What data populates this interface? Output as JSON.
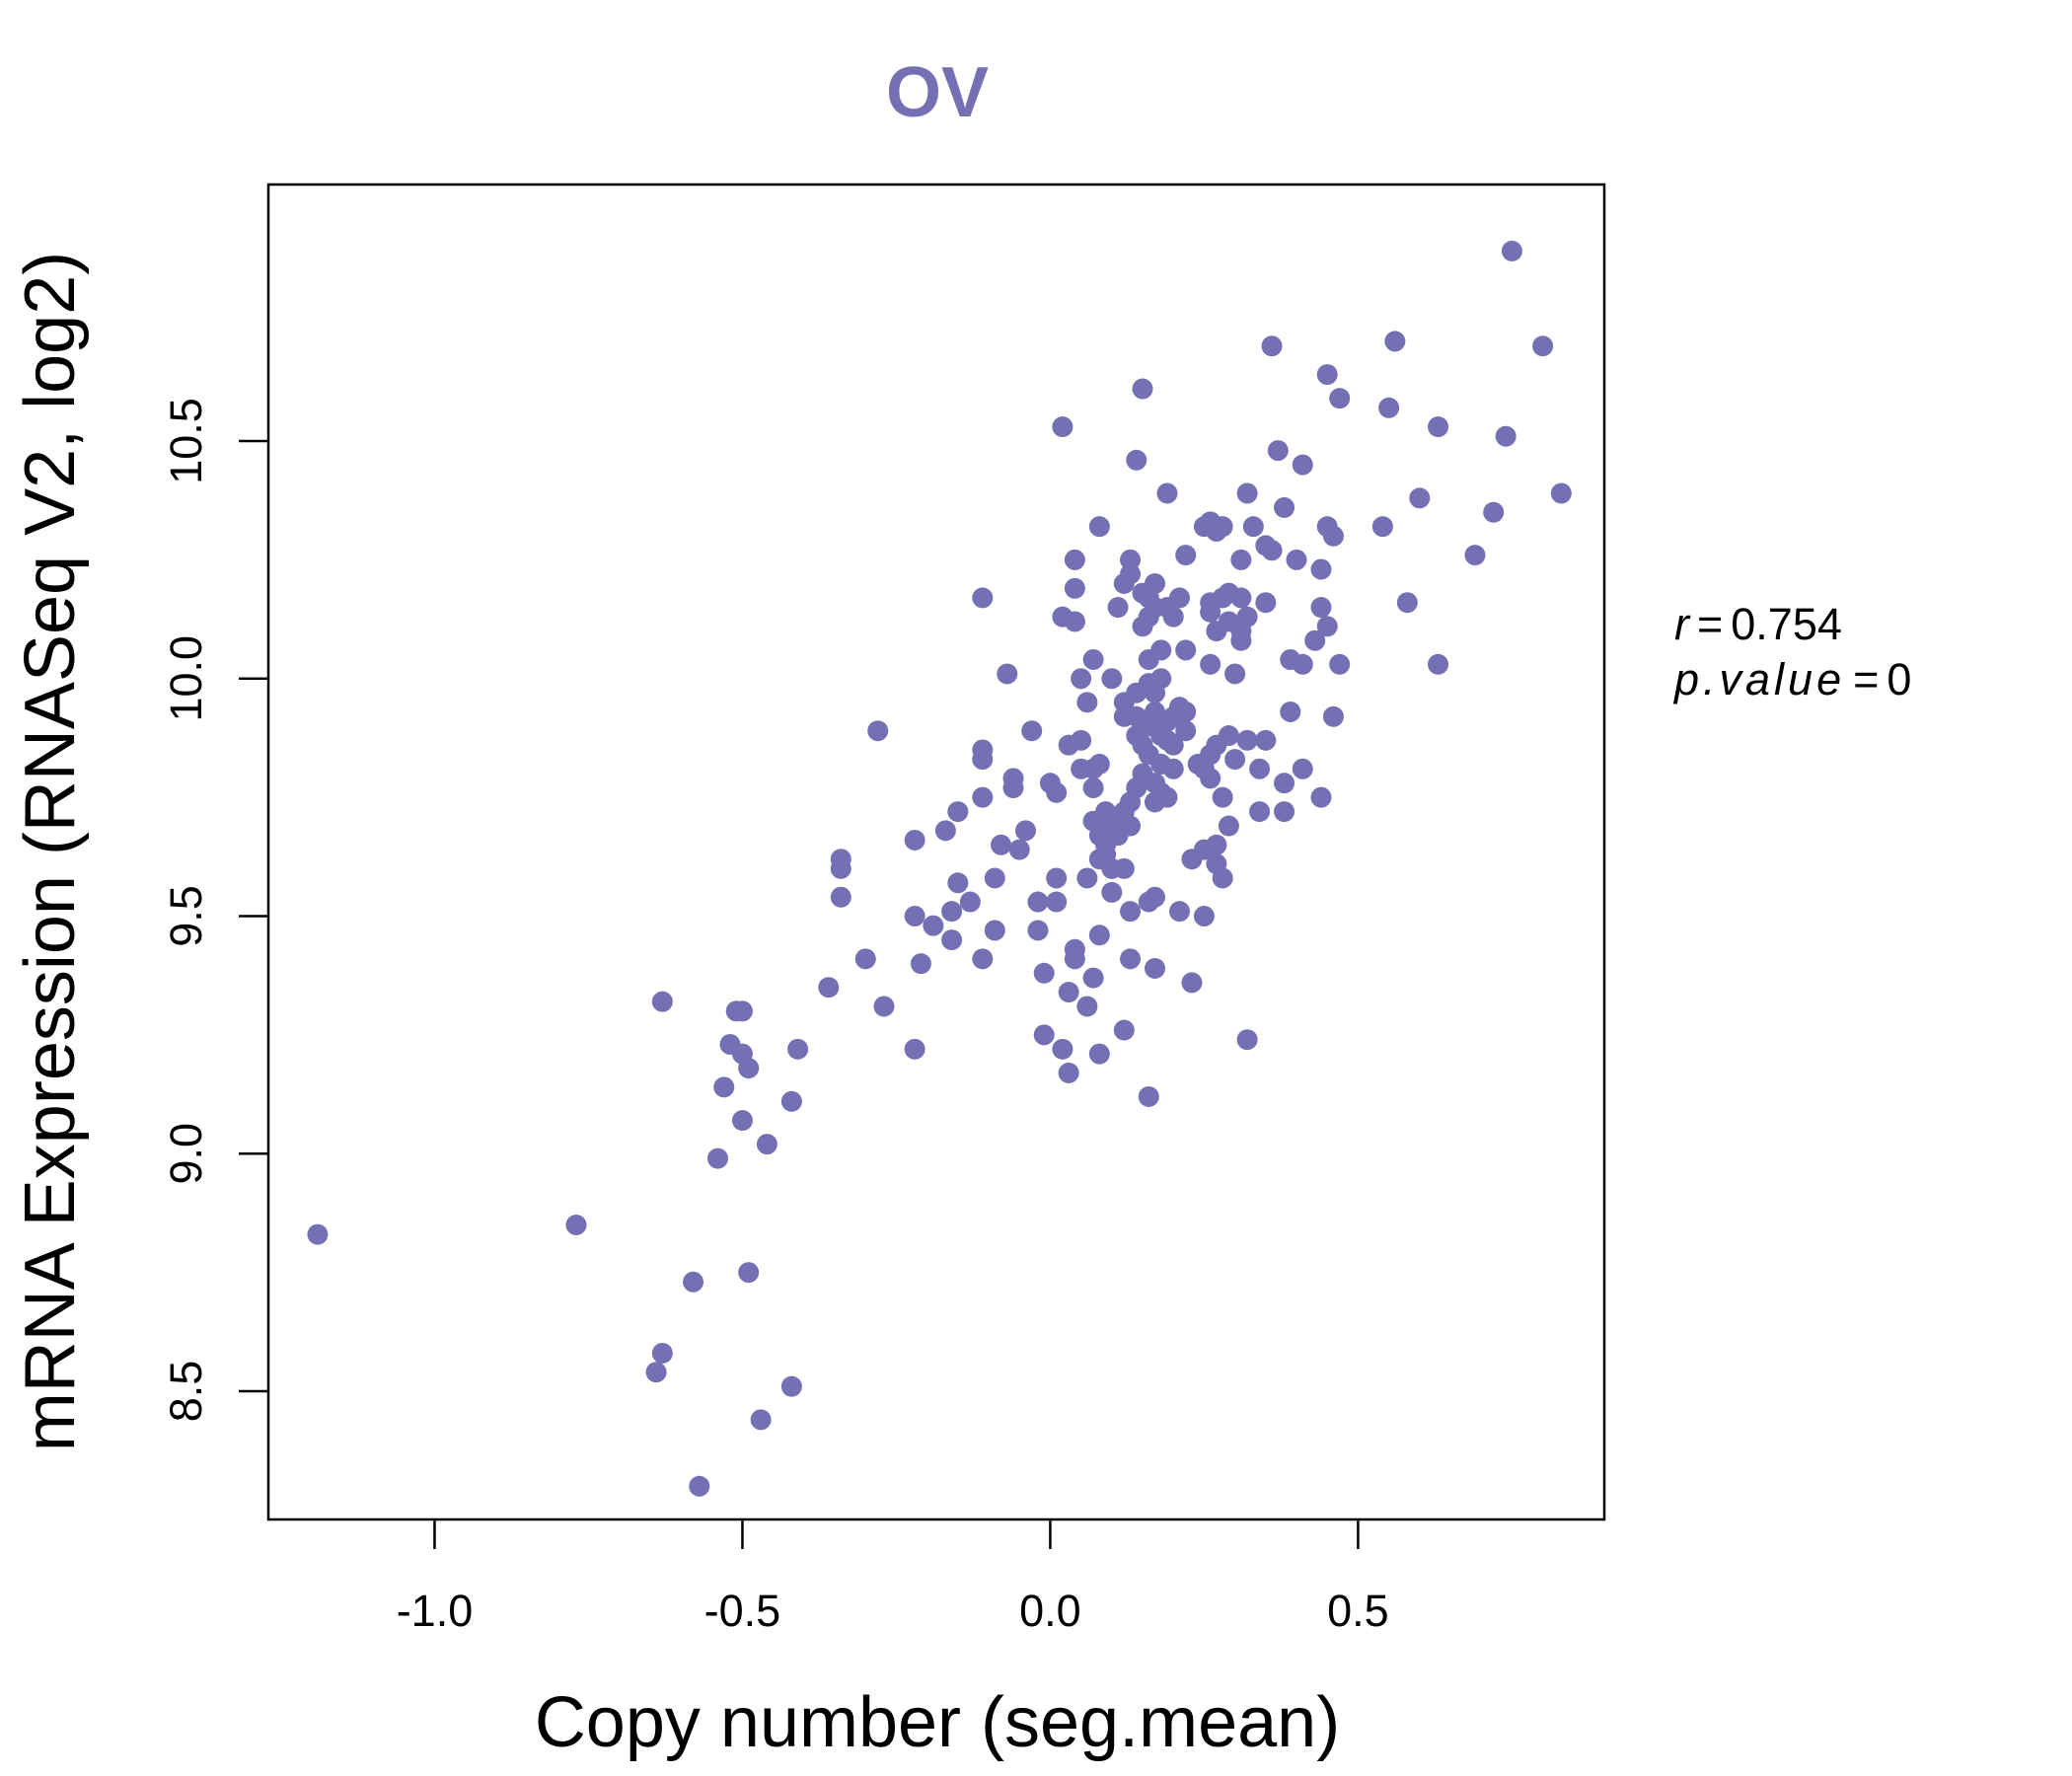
{
  "chart_data": {
    "type": "scatter",
    "title": "OV",
    "xlabel": "Copy number (seg.mean)",
    "ylabel": "mRNA Expression (RNASeq V2, log2)",
    "xlim": [
      -1.27,
      0.9
    ],
    "ylim": [
      8.23,
      11.04
    ],
    "x_ticks": [
      -1.0,
      -0.5,
      0.0,
      0.5
    ],
    "x_tick_labels": [
      "-1.0",
      "-0.5",
      "0.0",
      "0.5"
    ],
    "y_ticks": [
      8.5,
      9.0,
      9.5,
      10.0,
      10.5
    ],
    "y_tick_labels": [
      "8.5",
      "9.0",
      "9.5",
      "10.0",
      "10.5"
    ],
    "stats": {
      "r_label": "r",
      "r_value": "0.754",
      "p_label": "p.value",
      "p_value": "0"
    },
    "colors": {
      "points": "#7570b3",
      "title": "#7570b3",
      "axes": "#000000"
    },
    "series": [
      {
        "name": "OV",
        "points": [
          [
            -1.19,
            8.83
          ],
          [
            -0.77,
            8.85
          ],
          [
            -0.64,
            8.54
          ],
          [
            -0.63,
            8.58
          ],
          [
            -0.63,
            9.32
          ],
          [
            -0.58,
            8.73
          ],
          [
            -0.57,
            8.3
          ],
          [
            -0.54,
            8.99
          ],
          [
            -0.53,
            9.14
          ],
          [
            -0.52,
            9.23
          ],
          [
            -0.51,
            9.3
          ],
          [
            -0.5,
            9.3
          ],
          [
            -0.5,
            9.21
          ],
          [
            -0.5,
            9.07
          ],
          [
            -0.49,
            9.18
          ],
          [
            -0.49,
            8.75
          ],
          [
            -0.47,
            8.44
          ],
          [
            -0.46,
            9.02
          ],
          [
            -0.42,
            9.11
          ],
          [
            -0.42,
            8.51
          ],
          [
            -0.41,
            9.22
          ],
          [
            -0.36,
            9.35
          ],
          [
            -0.34,
            9.62
          ],
          [
            -0.34,
            9.6
          ],
          [
            -0.34,
            9.54
          ],
          [
            -0.3,
            9.41
          ],
          [
            -0.28,
            9.89
          ],
          [
            -0.27,
            9.31
          ],
          [
            -0.22,
            9.66
          ],
          [
            -0.22,
            9.5
          ],
          [
            -0.21,
            9.4
          ],
          [
            -0.22,
            9.22
          ],
          [
            -0.19,
            9.48
          ],
          [
            -0.17,
            9.68
          ],
          [
            -0.16,
            9.45
          ],
          [
            -0.16,
            9.51
          ],
          [
            -0.15,
            9.72
          ],
          [
            -0.15,
            9.57
          ],
          [
            -0.13,
            9.53
          ],
          [
            -0.11,
            9.85
          ],
          [
            -0.11,
            9.83
          ],
          [
            -0.11,
            9.75
          ],
          [
            -0.11,
            9.41
          ],
          [
            -0.11,
            10.17
          ],
          [
            -0.09,
            9.47
          ],
          [
            -0.09,
            9.58
          ],
          [
            -0.08,
            9.65
          ],
          [
            -0.07,
            10.01
          ],
          [
            -0.06,
            9.79
          ],
          [
            -0.06,
            9.77
          ],
          [
            -0.05,
            9.64
          ],
          [
            -0.04,
            9.68
          ],
          [
            -0.03,
            9.89
          ],
          [
            -0.02,
            9.53
          ],
          [
            -0.02,
            9.47
          ],
          [
            -0.01,
            9.38
          ],
          [
            -0.01,
            9.25
          ],
          [
            0.0,
            9.78
          ],
          [
            0.01,
            9.76
          ],
          [
            0.01,
            9.58
          ],
          [
            0.01,
            9.53
          ],
          [
            0.02,
            9.22
          ],
          [
            0.02,
            10.53
          ],
          [
            0.02,
            10.13
          ],
          [
            0.03,
            9.86
          ],
          [
            0.03,
            9.34
          ],
          [
            0.03,
            9.17
          ],
          [
            0.04,
            10.25
          ],
          [
            0.04,
            10.19
          ],
          [
            0.04,
            10.12
          ],
          [
            0.04,
            9.43
          ],
          [
            0.04,
            9.41
          ],
          [
            0.05,
            9.87
          ],
          [
            0.05,
            9.81
          ],
          [
            0.05,
            10.0
          ],
          [
            0.06,
            9.95
          ],
          [
            0.06,
            9.58
          ],
          [
            0.06,
            9.31
          ],
          [
            0.07,
            10.04
          ],
          [
            0.07,
            9.81
          ],
          [
            0.07,
            9.77
          ],
          [
            0.07,
            9.7
          ],
          [
            0.07,
            9.37
          ],
          [
            0.08,
            10.32
          ],
          [
            0.08,
            9.82
          ],
          [
            0.08,
            9.67
          ],
          [
            0.08,
            9.62
          ],
          [
            0.08,
            9.46
          ],
          [
            0.08,
            9.21
          ],
          [
            0.09,
            9.72
          ],
          [
            0.09,
            9.68
          ],
          [
            0.09,
            9.65
          ],
          [
            0.09,
            9.63
          ],
          [
            0.1,
            9.6
          ],
          [
            0.1,
            9.55
          ],
          [
            0.1,
            9.7
          ],
          [
            0.1,
            10.0
          ],
          [
            0.11,
            10.15
          ],
          [
            0.11,
            9.67
          ],
          [
            0.12,
            9.72
          ],
          [
            0.12,
            10.2
          ],
          [
            0.12,
            9.95
          ],
          [
            0.12,
            9.92
          ],
          [
            0.12,
            9.6
          ],
          [
            0.12,
            9.26
          ],
          [
            0.13,
            10.25
          ],
          [
            0.13,
            10.22
          ],
          [
            0.13,
            9.74
          ],
          [
            0.13,
            9.69
          ],
          [
            0.13,
            9.51
          ],
          [
            0.13,
            9.41
          ],
          [
            0.14,
            10.46
          ],
          [
            0.14,
            9.77
          ],
          [
            0.14,
            9.97
          ],
          [
            0.14,
            9.92
          ],
          [
            0.14,
            9.88
          ],
          [
            0.15,
            10.18
          ],
          [
            0.15,
            10.11
          ],
          [
            0.15,
            9.86
          ],
          [
            0.15,
            9.8
          ],
          [
            0.15,
            10.61
          ],
          [
            0.16,
            10.17
          ],
          [
            0.16,
            10.13
          ],
          [
            0.16,
            10.04
          ],
          [
            0.16,
            9.99
          ],
          [
            0.16,
            9.9
          ],
          [
            0.16,
            9.84
          ],
          [
            0.16,
            9.53
          ],
          [
            0.16,
            9.12
          ],
          [
            0.17,
            10.2
          ],
          [
            0.17,
            10.15
          ],
          [
            0.17,
            9.97
          ],
          [
            0.17,
            9.93
          ],
          [
            0.17,
            9.78
          ],
          [
            0.17,
            9.74
          ],
          [
            0.17,
            9.54
          ],
          [
            0.17,
            9.39
          ],
          [
            0.18,
            10.06
          ],
          [
            0.18,
            10.0
          ],
          [
            0.18,
            9.88
          ],
          [
            0.18,
            9.82
          ],
          [
            0.18,
            9.76
          ],
          [
            0.19,
            10.39
          ],
          [
            0.19,
            10.15
          ],
          [
            0.19,
            9.91
          ],
          [
            0.19,
            9.87
          ],
          [
            0.19,
            9.75
          ],
          [
            0.2,
            10.13
          ],
          [
            0.2,
            9.92
          ],
          [
            0.2,
            9.86
          ],
          [
            0.2,
            9.81
          ],
          [
            0.21,
            10.17
          ],
          [
            0.21,
            9.94
          ],
          [
            0.21,
            9.51
          ],
          [
            0.22,
            10.26
          ],
          [
            0.22,
            10.06
          ],
          [
            0.22,
            9.89
          ],
          [
            0.22,
            9.93
          ],
          [
            0.23,
            9.36
          ],
          [
            0.23,
            9.62
          ],
          [
            0.24,
            9.82
          ],
          [
            0.25,
            10.32
          ],
          [
            0.25,
            9.81
          ],
          [
            0.25,
            9.64
          ],
          [
            0.25,
            9.5
          ],
          [
            0.26,
            10.33
          ],
          [
            0.26,
            10.16
          ],
          [
            0.26,
            10.14
          ],
          [
            0.26,
            10.03
          ],
          [
            0.26,
            9.84
          ],
          [
            0.26,
            9.79
          ],
          [
            0.27,
            10.31
          ],
          [
            0.27,
            10.1
          ],
          [
            0.27,
            9.86
          ],
          [
            0.27,
            9.65
          ],
          [
            0.27,
            9.61
          ],
          [
            0.28,
            10.32
          ],
          [
            0.28,
            10.17
          ],
          [
            0.28,
            9.75
          ],
          [
            0.28,
            9.58
          ],
          [
            0.29,
            10.18
          ],
          [
            0.29,
            10.12
          ],
          [
            0.29,
            9.88
          ],
          [
            0.29,
            9.69
          ],
          [
            0.3,
            10.01
          ],
          [
            0.3,
            9.83
          ],
          [
            0.31,
            10.25
          ],
          [
            0.31,
            10.17
          ],
          [
            0.31,
            10.1
          ],
          [
            0.31,
            10.08
          ],
          [
            0.32,
            10.39
          ],
          [
            0.32,
            10.13
          ],
          [
            0.32,
            9.87
          ],
          [
            0.32,
            9.24
          ],
          [
            0.33,
            10.32
          ],
          [
            0.34,
            9.81
          ],
          [
            0.34,
            9.72
          ],
          [
            0.35,
            10.28
          ],
          [
            0.35,
            10.16
          ],
          [
            0.35,
            9.87
          ],
          [
            0.36,
            10.27
          ],
          [
            0.36,
            10.7
          ],
          [
            0.37,
            10.48
          ],
          [
            0.38,
            10.36
          ],
          [
            0.38,
            9.78
          ],
          [
            0.38,
            9.72
          ],
          [
            0.39,
            10.04
          ],
          [
            0.39,
            9.93
          ],
          [
            0.4,
            10.25
          ],
          [
            0.41,
            10.45
          ],
          [
            0.41,
            10.03
          ],
          [
            0.41,
            9.81
          ],
          [
            0.43,
            10.08
          ],
          [
            0.44,
            10.23
          ],
          [
            0.44,
            10.15
          ],
          [
            0.44,
            9.75
          ],
          [
            0.45,
            10.64
          ],
          [
            0.45,
            10.32
          ],
          [
            0.45,
            10.11
          ],
          [
            0.46,
            10.3
          ],
          [
            0.46,
            9.92
          ],
          [
            0.47,
            10.59
          ],
          [
            0.47,
            10.03
          ],
          [
            0.54,
            10.32
          ],
          [
            0.55,
            10.57
          ],
          [
            0.56,
            10.71
          ],
          [
            0.58,
            10.16
          ],
          [
            0.6,
            10.38
          ],
          [
            0.63,
            10.53
          ],
          [
            0.63,
            10.03
          ],
          [
            0.69,
            10.26
          ],
          [
            0.72,
            10.35
          ],
          [
            0.74,
            10.51
          ],
          [
            0.75,
            10.9
          ],
          [
            0.8,
            10.7
          ],
          [
            0.83,
            10.39
          ]
        ]
      }
    ]
  }
}
